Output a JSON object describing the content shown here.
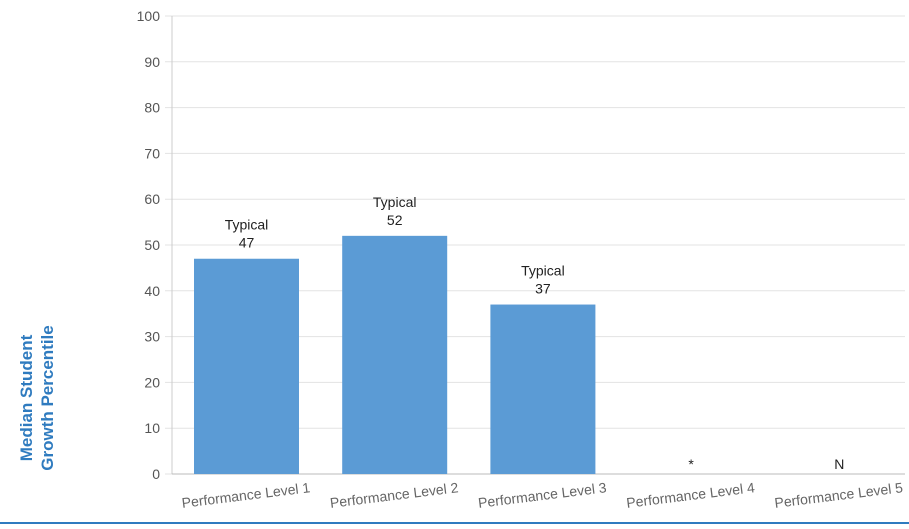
{
  "chart_data": {
    "type": "bar",
    "categories": [
      "Performance Level 1",
      "Performance Level 2",
      "Performance Level 3",
      "Performance Level 4",
      "Performance Level 5"
    ],
    "series": [
      {
        "values": [
          47,
          52,
          37,
          null,
          null
        ],
        "labels": [
          "Typical",
          "Typical",
          "Typical",
          "",
          ""
        ],
        "value_text": [
          "47",
          "52",
          "37",
          "*",
          "N"
        ]
      }
    ],
    "title": "",
    "xlabel": "",
    "ylabel_lines": [
      "Median Student",
      "Growth Percentile"
    ],
    "ylim": [
      0,
      100
    ],
    "yticks": [
      0,
      10,
      20,
      30,
      40,
      50,
      60,
      70,
      80,
      90,
      100
    ],
    "grid": true,
    "bar_color": "#5b9bd5",
    "ylabel_color": "#2f7bbf"
  }
}
